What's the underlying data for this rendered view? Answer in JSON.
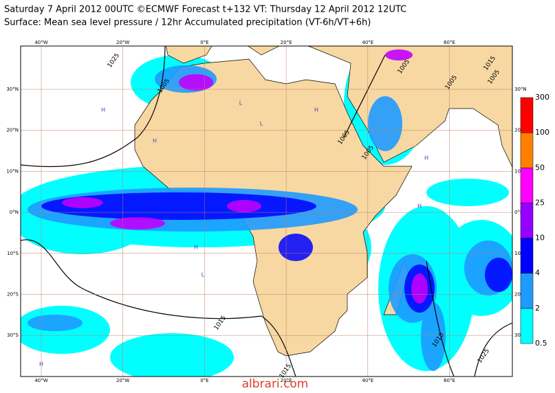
{
  "header": {
    "title": "Saturday 7 April 2012 00UTC ©ECMWF Forecast t+132 VT: Thursday 12 April 2012 12UTC",
    "subtitle": "Surface: Mean sea level pressure / 12hr Accumulated precipitation (VT-6h/VT+6h)"
  },
  "map": {
    "longitude_labels": [
      "40°W",
      "20°W",
      "0°E",
      "20°E",
      "40°E",
      "60°E"
    ],
    "latitude_labels": [
      "30°N",
      "20°N",
      "10°N",
      "0°N",
      "10°S",
      "20°S",
      "30°S"
    ],
    "isobar_labels": [
      "1025",
      "1005",
      "1005",
      "1015",
      "1005",
      "1005",
      "1005",
      "1005",
      "1015",
      "1015",
      "1010",
      "1025"
    ],
    "pressure_centers": [
      "H",
      "H",
      "H",
      "L",
      "H",
      "L",
      "H",
      "H",
      "L",
      "H"
    ]
  },
  "colorbar": {
    "labels": [
      "0.5",
      "2",
      "4",
      "10",
      "25",
      "50",
      "100",
      "300"
    ],
    "colors": [
      "#00ffff",
      "#1e9bff",
      "#0000ff",
      "#9600ff",
      "#ff00ff",
      "#ff8000",
      "#ff0000"
    ]
  },
  "watermark": "albrari.com"
}
